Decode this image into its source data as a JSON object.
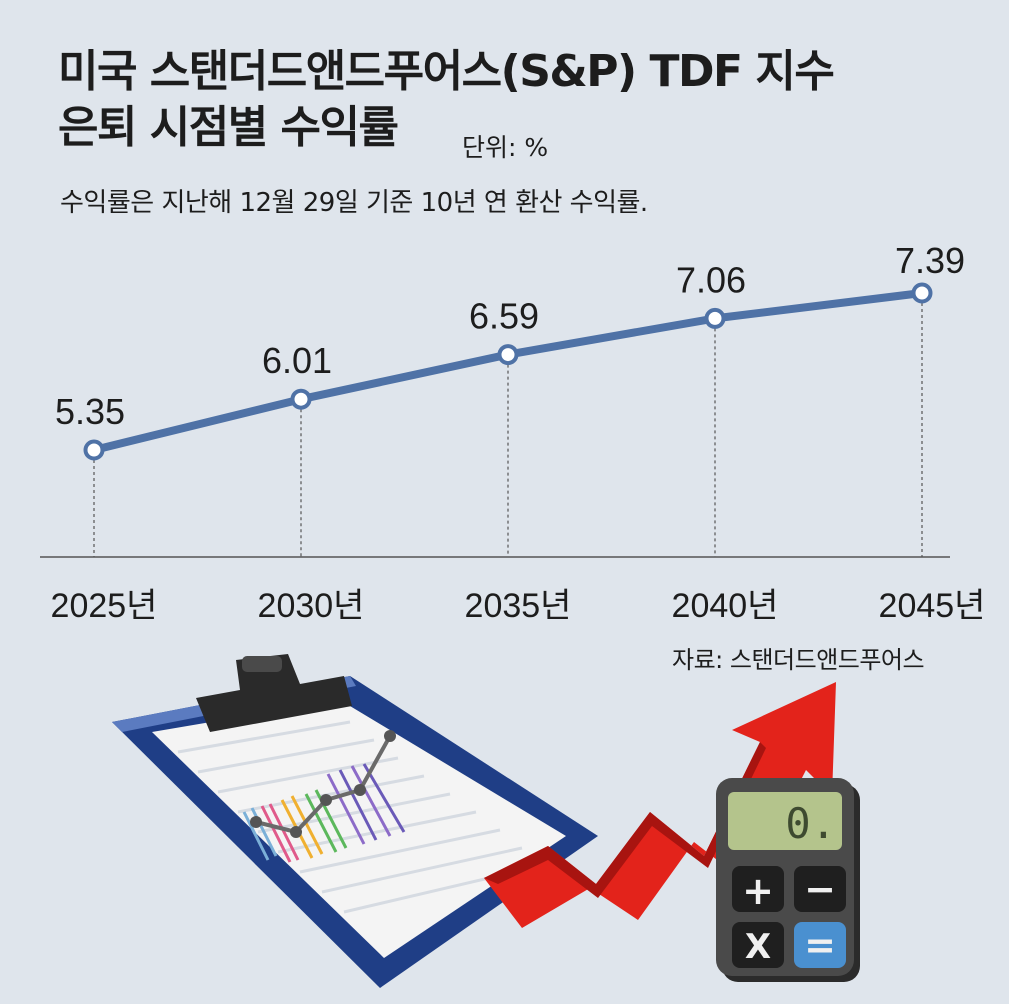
{
  "title_line1": "미국 스탠더드앤드푸어스(S&P) TDF 지수",
  "title_line2": "은퇴 시점별 수익률",
  "unit": "단위: %",
  "subtitle": "수익률은 지난해 12월 29일 기준 10년 연 환산 수익률.",
  "source": "자료: 스탠더드앤드푸어스",
  "colors": {
    "line": "#4f72a6",
    "background": "#dfe5ec",
    "text": "#1d1d1d",
    "arrow": "#e3231b"
  },
  "chart_data": {
    "type": "line",
    "categories": [
      "2025년",
      "2030년",
      "2035년",
      "2040년",
      "2045년"
    ],
    "series": [
      {
        "values": [
          5.35,
          6.01,
          6.59,
          7.06,
          7.39
        ]
      }
    ],
    "value_labels": [
      "5.35",
      "6.01",
      "6.59",
      "7.06",
      "7.39"
    ],
    "grid": false
  },
  "illustration": {
    "calculator_display": "0.",
    "calculator_keys": [
      "+",
      "−",
      "X",
      "="
    ]
  }
}
